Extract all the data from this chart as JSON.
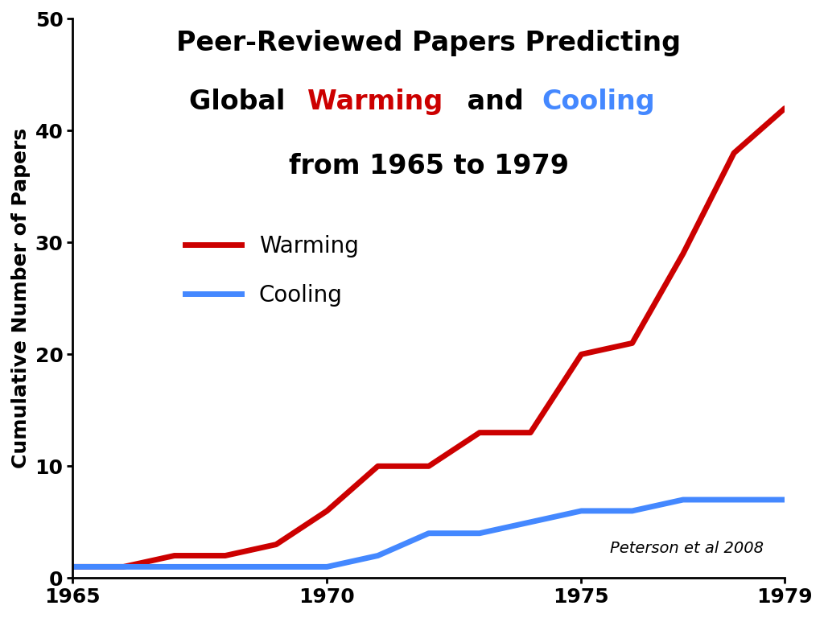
{
  "title_line1": "Peer-Reviewed Papers Predicting",
  "title_line2_parts": [
    {
      "text": "Global ",
      "color": "#000000"
    },
    {
      "text": "Warming",
      "color": "#cc0000"
    },
    {
      "text": " and ",
      "color": "#000000"
    },
    {
      "text": "Cooling",
      "color": "#4488ff"
    }
  ],
  "title_line3": "from 1965 to 1979",
  "ylabel": "Cumulative Number of Papers",
  "citation": "Peterson et al 2008",
  "warming_color": "#cc0000",
  "cooling_color": "#4488ff",
  "text_color": "#000000",
  "background_color": "#ffffff",
  "xlim": [
    1965,
    1979
  ],
  "ylim": [
    0,
    50
  ],
  "yticks": [
    0,
    10,
    20,
    30,
    40,
    50
  ],
  "xticks": [
    1965,
    1970,
    1975,
    1979
  ],
  "warming_x": [
    1965,
    1966,
    1967,
    1968,
    1969,
    1970,
    1971,
    1972,
    1973,
    1974,
    1975,
    1976,
    1977,
    1978,
    1979
  ],
  "warming_y": [
    1,
    1,
    2,
    2,
    3,
    6,
    10,
    10,
    13,
    13,
    20,
    21,
    29,
    38,
    42
  ],
  "cooling_x": [
    1965,
    1966,
    1967,
    1968,
    1969,
    1970,
    1971,
    1972,
    1973,
    1974,
    1975,
    1976,
    1977,
    1978,
    1979
  ],
  "cooling_y": [
    1,
    1,
    1,
    1,
    1,
    1,
    2,
    4,
    4,
    5,
    6,
    6,
    7,
    7,
    7
  ],
  "line_width": 5,
  "legend_fontsize": 20,
  "tick_fontsize": 18,
  "ylabel_fontsize": 18,
  "citation_fontsize": 14,
  "title_fontsize": 24
}
